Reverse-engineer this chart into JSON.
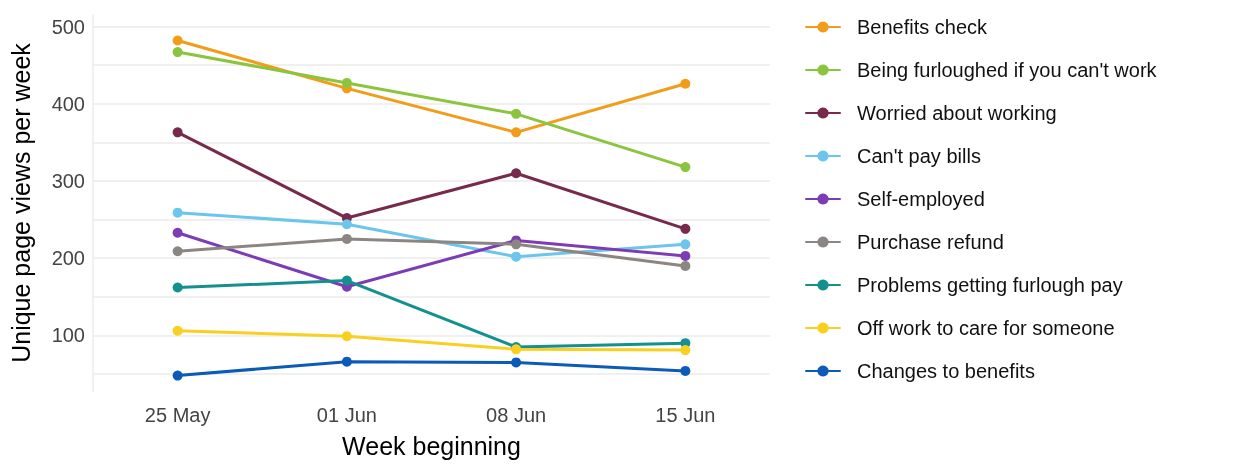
{
  "chart_data": {
    "type": "line",
    "xlabel": "Week beginning",
    "ylabel": "Unique page views per week",
    "categories": [
      "25 May",
      "01 Jun",
      "08 Jun",
      "15 Jun"
    ],
    "series": [
      {
        "name": "Benefits check",
        "color": "#f29d1a",
        "values": [
          482,
          420,
          363,
          426
        ]
      },
      {
        "name": "Being furloughed if you can't work",
        "color": "#8bc53f",
        "values": [
          467,
          427,
          387,
          318
        ]
      },
      {
        "name": "Worried about working",
        "color": "#772a4b",
        "values": [
          363,
          252,
          310,
          238
        ]
      },
      {
        "name": "Can't pay bills",
        "color": "#6cc5ec",
        "values": [
          259,
          244,
          202,
          218
        ]
      },
      {
        "name": "Self-employed",
        "color": "#7c3cb4",
        "values": [
          233,
          163,
          223,
          203
        ]
      },
      {
        "name": "Purchase refund",
        "color": "#8c8683",
        "values": [
          209,
          225,
          218,
          190
        ]
      },
      {
        "name": "Problems getting furlough pay",
        "color": "#14908f",
        "values": [
          162,
          171,
          85,
          90
        ]
      },
      {
        "name": "Off work to care for someone",
        "color": "#f9d01f",
        "values": [
          106,
          99,
          82,
          81
        ]
      },
      {
        "name": "Changes to benefits",
        "color": "#0c5bb7",
        "values": [
          48,
          66,
          65,
          54
        ]
      }
    ],
    "yticks": [
      {
        "value": 50,
        "label": null
      },
      100,
      {
        "value": 150,
        "label": null
      },
      200,
      {
        "value": 250,
        "label": null
      },
      300,
      {
        "value": 350,
        "label": null
      },
      400,
      {
        "value": 450,
        "label": null
      },
      500
    ],
    "ylim": [
      28,
      515
    ],
    "grid": "y",
    "legend": "right",
    "marker": "circle",
    "line_style": "solid"
  }
}
